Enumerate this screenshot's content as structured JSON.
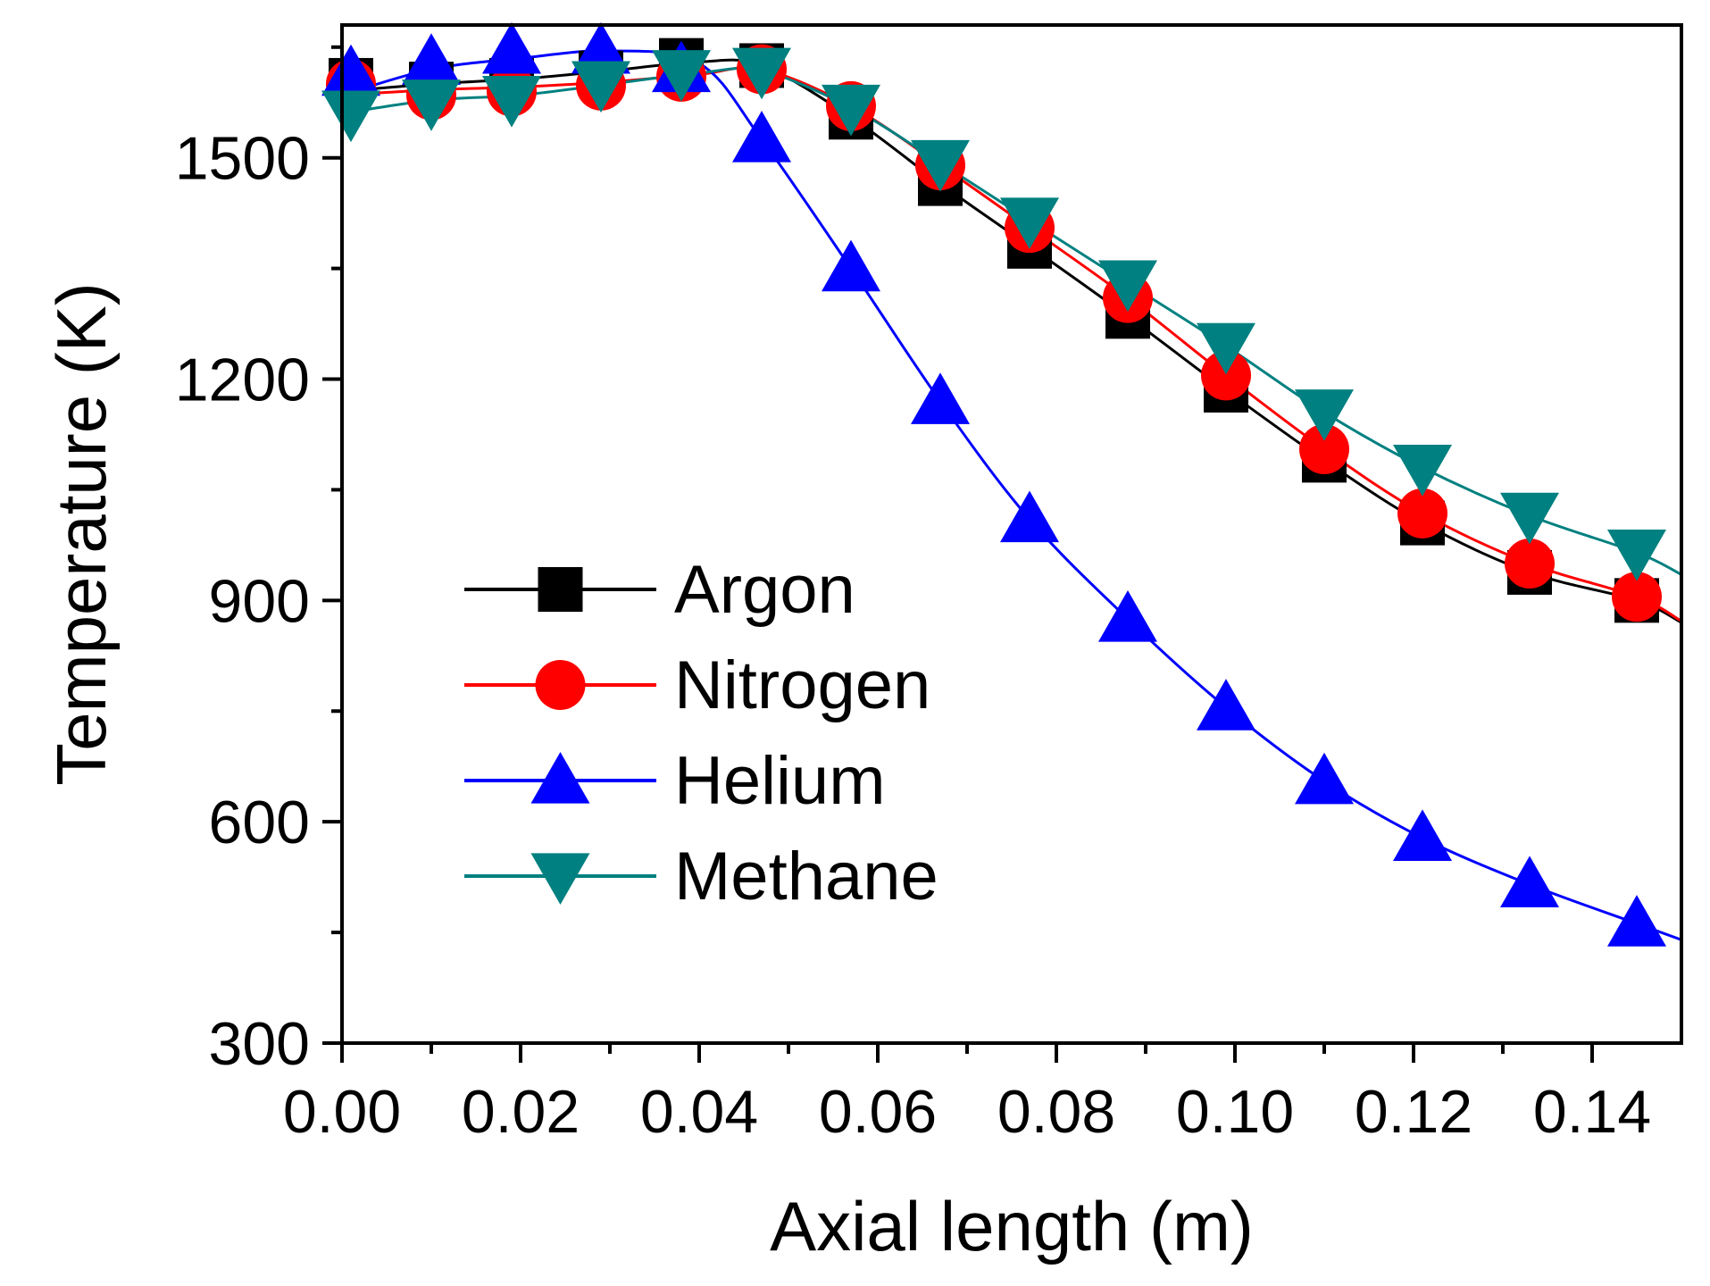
{
  "chart_data": {
    "type": "line",
    "title": "",
    "xlabel": "Axial length (m)",
    "ylabel": "Temperature (K)",
    "xlim": [
      0.0,
      0.15
    ],
    "ylim": [
      300,
      1680
    ],
    "x_ticks": [
      "0.00",
      "0.02",
      "0.04",
      "0.06",
      "0.08",
      "0.10",
      "0.12",
      "0.14"
    ],
    "x_tick_values": [
      0.0,
      0.02,
      0.04,
      0.06,
      0.08,
      0.1,
      0.12,
      0.14
    ],
    "y_ticks": [
      "300",
      "600",
      "900",
      "1200",
      "1500"
    ],
    "y_tick_values": [
      300,
      600,
      900,
      1200,
      1500
    ],
    "legend_position": "center-left",
    "series": [
      {
        "name": "Argon",
        "color": "#000000",
        "marker": "square",
        "x": [
          0.001,
          0.01,
          0.019,
          0.029,
          0.038,
          0.047,
          0.057,
          0.067,
          0.077,
          0.088,
          0.099,
          0.11,
          0.121,
          0.133,
          0.145
        ],
        "y": [
          1605,
          1600,
          1605,
          1615,
          1632,
          1625,
          1555,
          1465,
          1380,
          1285,
          1185,
          1090,
          1005,
          938,
          900
        ],
        "curve_x": [
          0.0,
          0.01,
          0.02,
          0.03,
          0.04,
          0.047,
          0.057,
          0.067,
          0.077,
          0.088,
          0.099,
          0.11,
          0.121,
          0.133,
          0.145,
          0.15
        ],
        "curve_y": [
          1590,
          1600,
          1607,
          1618,
          1630,
          1625,
          1555,
          1465,
          1380,
          1285,
          1185,
          1090,
          1005,
          938,
          900,
          870
        ]
      },
      {
        "name": "Nitrogen",
        "color": "#ff0000",
        "marker": "circle",
        "x": [
          0.001,
          0.01,
          0.019,
          0.029,
          0.038,
          0.047,
          0.057,
          0.067,
          0.077,
          0.088,
          0.099,
          0.11,
          0.121,
          0.133,
          0.145
        ],
        "y": [
          1600,
          1585,
          1590,
          1598,
          1610,
          1620,
          1570,
          1490,
          1405,
          1310,
          1205,
          1105,
          1018,
          950,
          905
        ],
        "curve_x": [
          0.0,
          0.01,
          0.02,
          0.03,
          0.04,
          0.047,
          0.057,
          0.067,
          0.077,
          0.088,
          0.099,
          0.11,
          0.121,
          0.133,
          0.145,
          0.15
        ],
        "curve_y": [
          1585,
          1592,
          1596,
          1603,
          1613,
          1620,
          1570,
          1490,
          1405,
          1310,
          1205,
          1105,
          1018,
          950,
          905,
          872
        ]
      },
      {
        "name": "Helium",
        "color": "#0000ff",
        "marker": "triangle-up",
        "x": [
          0.001,
          0.01,
          0.019,
          0.029,
          0.038,
          0.047,
          0.057,
          0.067,
          0.077,
          0.088,
          0.099,
          0.11,
          0.121,
          0.133,
          0.145
        ],
        "y": [
          1615,
          1630,
          1645,
          1645,
          1620,
          1525,
          1350,
          1170,
          1010,
          875,
          755,
          655,
          578,
          515,
          462
        ],
        "curve_x": [
          0.0,
          0.01,
          0.02,
          0.03,
          0.04,
          0.047,
          0.057,
          0.067,
          0.077,
          0.088,
          0.099,
          0.11,
          0.121,
          0.133,
          0.145,
          0.15
        ],
        "curve_y": [
          1585,
          1620,
          1635,
          1645,
          1628,
          1525,
          1350,
          1170,
          1010,
          875,
          755,
          655,
          578,
          515,
          462,
          440
        ]
      },
      {
        "name": "Methane",
        "color": "#008080",
        "marker": "triangle-down",
        "x": [
          0.001,
          0.01,
          0.019,
          0.029,
          0.038,
          0.047,
          0.057,
          0.067,
          0.077,
          0.088,
          0.099,
          0.11,
          0.121,
          0.133,
          0.145
        ],
        "y": [
          1560,
          1575,
          1580,
          1600,
          1615,
          1618,
          1568,
          1493,
          1415,
          1330,
          1245,
          1155,
          1080,
          1015,
          965
        ],
        "curve_x": [
          0.0,
          0.01,
          0.02,
          0.03,
          0.04,
          0.047,
          0.057,
          0.067,
          0.077,
          0.088,
          0.099,
          0.11,
          0.121,
          0.133,
          0.145,
          0.15
        ],
        "curve_y": [
          1560,
          1578,
          1585,
          1600,
          1615,
          1618,
          1568,
          1493,
          1415,
          1330,
          1245,
          1155,
          1080,
          1015,
          965,
          935
        ]
      }
    ]
  }
}
